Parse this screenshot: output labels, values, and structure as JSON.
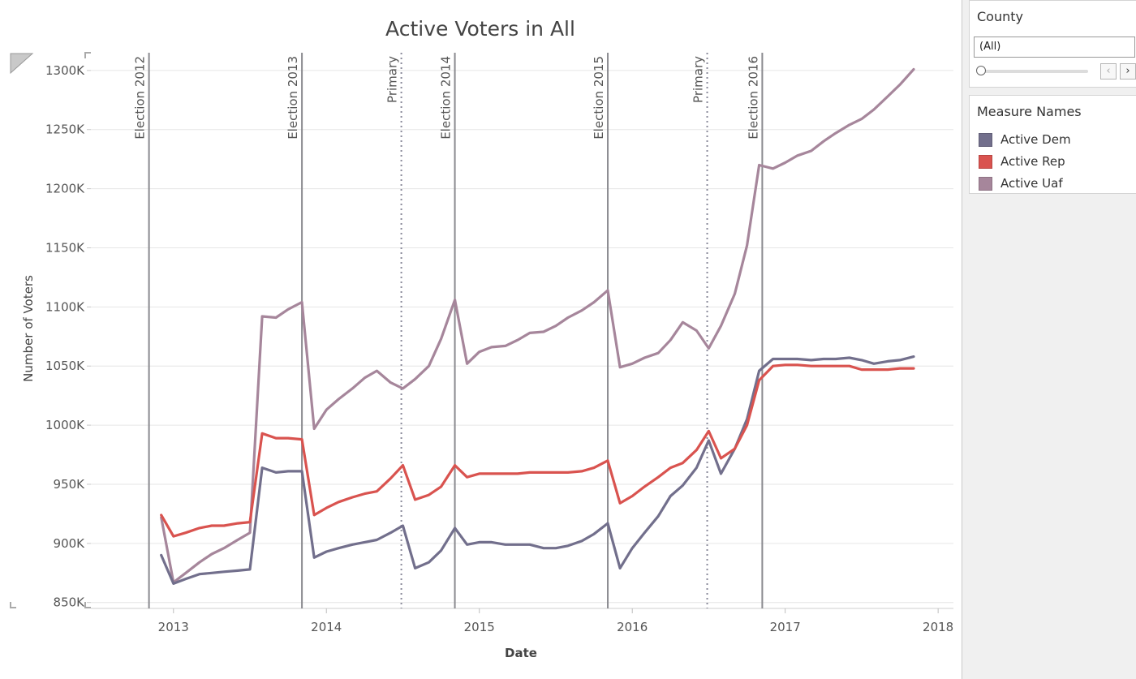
{
  "chart_data": {
    "type": "line",
    "title": "Active Voters in All",
    "xlabel": "Date",
    "ylabel": "Number of Voters",
    "x_ticks": [
      "2013",
      "2014",
      "2015",
      "2016",
      "2017",
      "2018"
    ],
    "y_ticks": [
      "850K",
      "900K",
      "950K",
      "1000K",
      "1050K",
      "1100K",
      "1150K",
      "1200K",
      "1250K",
      "1300K"
    ],
    "ylim": [
      845,
      1315
    ],
    "xlim": [
      2012.46,
      2018.1
    ],
    "reference_lines": [
      {
        "label": "Election 2012",
        "x": 2012.84,
        "style": "solid"
      },
      {
        "label": "Election 2013",
        "x": 2013.84,
        "style": "solid"
      },
      {
        "label": "Primary",
        "x": 2014.49,
        "style": "dotted"
      },
      {
        "label": "Election 2014",
        "x": 2014.84,
        "style": "solid"
      },
      {
        "label": "Election 2015",
        "x": 2015.84,
        "style": "solid"
      },
      {
        "label": "Primary",
        "x": 2016.49,
        "style": "dotted"
      },
      {
        "label": "Election 2016",
        "x": 2016.85,
        "style": "solid"
      }
    ],
    "grid": true,
    "legend_placement": "right",
    "series": [
      {
        "name": "Active Dem",
        "color": "#726f8c",
        "points": [
          [
            2012.92,
            890
          ],
          [
            2013.0,
            866
          ],
          [
            2013.08,
            870
          ],
          [
            2013.17,
            874
          ],
          [
            2013.25,
            875
          ],
          [
            2013.33,
            876
          ],
          [
            2013.42,
            877
          ],
          [
            2013.5,
            878
          ],
          [
            2013.58,
            964
          ],
          [
            2013.67,
            960
          ],
          [
            2013.75,
            961
          ],
          [
            2013.84,
            961
          ],
          [
            2013.92,
            888
          ],
          [
            2014.0,
            893
          ],
          [
            2014.08,
            896
          ],
          [
            2014.17,
            899
          ],
          [
            2014.25,
            901
          ],
          [
            2014.33,
            903
          ],
          [
            2014.42,
            909
          ],
          [
            2014.5,
            915
          ],
          [
            2014.58,
            879
          ],
          [
            2014.67,
            884
          ],
          [
            2014.75,
            894
          ],
          [
            2014.84,
            913
          ],
          [
            2014.92,
            899
          ],
          [
            2015.0,
            901
          ],
          [
            2015.08,
            901
          ],
          [
            2015.17,
            899
          ],
          [
            2015.25,
            899
          ],
          [
            2015.33,
            899
          ],
          [
            2015.42,
            896
          ],
          [
            2015.5,
            896
          ],
          [
            2015.58,
            898
          ],
          [
            2015.67,
            902
          ],
          [
            2015.75,
            908
          ],
          [
            2015.84,
            917
          ],
          [
            2015.92,
            879
          ],
          [
            2016.0,
            896
          ],
          [
            2016.08,
            909
          ],
          [
            2016.17,
            923
          ],
          [
            2016.25,
            940
          ],
          [
            2016.33,
            949
          ],
          [
            2016.42,
            964
          ],
          [
            2016.5,
            987
          ],
          [
            2016.58,
            959
          ],
          [
            2016.67,
            980
          ],
          [
            2016.75,
            1005
          ],
          [
            2016.83,
            1046
          ],
          [
            2016.92,
            1056
          ],
          [
            2017.0,
            1056
          ],
          [
            2017.08,
            1056
          ],
          [
            2017.17,
            1055
          ],
          [
            2017.25,
            1056
          ],
          [
            2017.33,
            1056
          ],
          [
            2017.42,
            1057
          ],
          [
            2017.5,
            1055
          ],
          [
            2017.58,
            1052
          ],
          [
            2017.67,
            1054
          ],
          [
            2017.75,
            1055
          ],
          [
            2017.84,
            1058
          ]
        ]
      },
      {
        "name": "Active Rep",
        "color": "#d9534f",
        "points": [
          [
            2012.92,
            924
          ],
          [
            2013.0,
            906
          ],
          [
            2013.08,
            909
          ],
          [
            2013.17,
            913
          ],
          [
            2013.25,
            915
          ],
          [
            2013.33,
            915
          ],
          [
            2013.42,
            917
          ],
          [
            2013.5,
            918
          ],
          [
            2013.58,
            993
          ],
          [
            2013.67,
            989
          ],
          [
            2013.75,
            989
          ],
          [
            2013.84,
            988
          ],
          [
            2013.92,
            924
          ],
          [
            2014.0,
            930
          ],
          [
            2014.08,
            935
          ],
          [
            2014.17,
            939
          ],
          [
            2014.25,
            942
          ],
          [
            2014.33,
            944
          ],
          [
            2014.42,
            955
          ],
          [
            2014.5,
            966
          ],
          [
            2014.58,
            937
          ],
          [
            2014.67,
            941
          ],
          [
            2014.75,
            948
          ],
          [
            2014.84,
            966
          ],
          [
            2014.92,
            956
          ],
          [
            2015.0,
            959
          ],
          [
            2015.08,
            959
          ],
          [
            2015.17,
            959
          ],
          [
            2015.25,
            959
          ],
          [
            2015.33,
            960
          ],
          [
            2015.42,
            960
          ],
          [
            2015.5,
            960
          ],
          [
            2015.58,
            960
          ],
          [
            2015.67,
            961
          ],
          [
            2015.75,
            964
          ],
          [
            2015.84,
            970
          ],
          [
            2015.92,
            934
          ],
          [
            2016.0,
            940
          ],
          [
            2016.08,
            948
          ],
          [
            2016.17,
            956
          ],
          [
            2016.25,
            964
          ],
          [
            2016.33,
            968
          ],
          [
            2016.42,
            979
          ],
          [
            2016.5,
            995
          ],
          [
            2016.58,
            972
          ],
          [
            2016.67,
            980
          ],
          [
            2016.75,
            1000
          ],
          [
            2016.83,
            1038
          ],
          [
            2016.92,
            1050
          ],
          [
            2017.0,
            1051
          ],
          [
            2017.08,
            1051
          ],
          [
            2017.17,
            1050
          ],
          [
            2017.25,
            1050
          ],
          [
            2017.33,
            1050
          ],
          [
            2017.42,
            1050
          ],
          [
            2017.5,
            1047
          ],
          [
            2017.58,
            1047
          ],
          [
            2017.67,
            1047
          ],
          [
            2017.75,
            1048
          ],
          [
            2017.84,
            1048
          ]
        ]
      },
      {
        "name": "Active Uaf",
        "color": "#a6869b",
        "points": [
          [
            2012.92,
            922
          ],
          [
            2013.0,
            867
          ],
          [
            2013.08,
            875
          ],
          [
            2013.17,
            884
          ],
          [
            2013.25,
            891
          ],
          [
            2013.33,
            896
          ],
          [
            2013.42,
            903
          ],
          [
            2013.5,
            909
          ],
          [
            2013.58,
            1092
          ],
          [
            2013.67,
            1091
          ],
          [
            2013.75,
            1098
          ],
          [
            2013.84,
            1104
          ],
          [
            2013.92,
            997
          ],
          [
            2014.0,
            1013
          ],
          [
            2014.08,
            1022
          ],
          [
            2014.17,
            1031
          ],
          [
            2014.25,
            1040
          ],
          [
            2014.33,
            1046
          ],
          [
            2014.42,
            1036
          ],
          [
            2014.5,
            1031
          ],
          [
            2014.58,
            1039
          ],
          [
            2014.67,
            1050
          ],
          [
            2014.75,
            1073
          ],
          [
            2014.84,
            1106
          ],
          [
            2014.92,
            1052
          ],
          [
            2015.0,
            1062
          ],
          [
            2015.08,
            1066
          ],
          [
            2015.17,
            1067
          ],
          [
            2015.25,
            1072
          ],
          [
            2015.33,
            1078
          ],
          [
            2015.42,
            1079
          ],
          [
            2015.5,
            1084
          ],
          [
            2015.58,
            1091
          ],
          [
            2015.67,
            1097
          ],
          [
            2015.75,
            1104
          ],
          [
            2015.84,
            1114
          ],
          [
            2015.92,
            1049
          ],
          [
            2016.0,
            1052
          ],
          [
            2016.08,
            1057
          ],
          [
            2016.17,
            1061
          ],
          [
            2016.25,
            1072
          ],
          [
            2016.33,
            1087
          ],
          [
            2016.42,
            1080
          ],
          [
            2016.5,
            1065
          ],
          [
            2016.58,
            1084
          ],
          [
            2016.67,
            1111
          ],
          [
            2016.75,
            1152
          ],
          [
            2016.83,
            1220
          ],
          [
            2016.92,
            1217
          ],
          [
            2017.0,
            1222
          ],
          [
            2017.08,
            1228
          ],
          [
            2017.17,
            1232
          ],
          [
            2017.25,
            1240
          ],
          [
            2017.33,
            1247
          ],
          [
            2017.42,
            1254
          ],
          [
            2017.5,
            1259
          ],
          [
            2017.58,
            1267
          ],
          [
            2017.67,
            1278
          ],
          [
            2017.75,
            1288
          ],
          [
            2017.84,
            1301
          ]
        ]
      }
    ]
  },
  "side_panel": {
    "county_filter": {
      "title": "County",
      "value": "(All)",
      "prev_icon": "chevron-left-icon",
      "next_icon": "chevron-right-icon"
    },
    "legend": {
      "title": "Measure Names",
      "items": [
        {
          "label": "Active Dem",
          "color": "#726f8c"
        },
        {
          "label": "Active Rep",
          "color": "#d9534f"
        },
        {
          "label": "Active Uaf",
          "color": "#a6869b"
        }
      ]
    }
  }
}
